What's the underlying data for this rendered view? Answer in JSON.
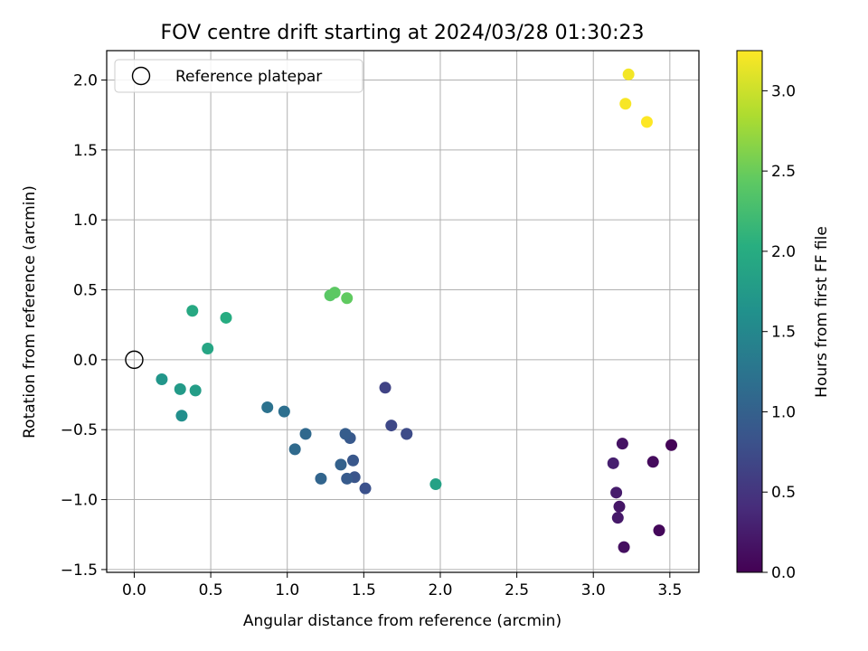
{
  "chart_data": {
    "type": "scatter",
    "title": "FOV centre drift starting at 2024/03/28 01:30:23",
    "xlabel": "Angular distance from reference (arcmin)",
    "ylabel": "Rotation from reference (arcmin)",
    "xlim": [
      -0.18,
      3.69
    ],
    "ylim": [
      -1.52,
      2.21
    ],
    "xticks": [
      0.0,
      0.5,
      1.0,
      1.5,
      2.0,
      2.5,
      3.0,
      3.5
    ],
    "xtick_labels": [
      "0.0",
      "0.5",
      "1.0",
      "1.5",
      "2.0",
      "2.5",
      "3.0",
      "3.5"
    ],
    "yticks": [
      -1.5,
      -1.0,
      -0.5,
      0.0,
      0.5,
      1.0,
      1.5,
      2.0
    ],
    "ytick_labels": [
      "−1.5",
      "−1.0",
      "−0.5",
      "0.0",
      "0.5",
      "1.0",
      "1.5",
      "2.0"
    ],
    "grid": true,
    "colormap": "viridis",
    "colorbar": {
      "label": "Hours from first FF file",
      "range": [
        0.0,
        3.25
      ],
      "ticks": [
        0.0,
        0.5,
        1.0,
        1.5,
        2.0,
        2.5,
        3.0
      ],
      "tick_labels": [
        "0.0",
        "0.5",
        "1.0",
        "1.5",
        "2.0",
        "2.5",
        "3.0"
      ]
    },
    "legend": {
      "placement": "upper-left",
      "entries": [
        {
          "label": "Reference platepar",
          "marker": "open-circle"
        }
      ]
    },
    "reference_point": {
      "x": 0.0,
      "y": 0.0
    },
    "points": [
      {
        "x": 3.51,
        "y": -0.61,
        "c": 0.03
      },
      {
        "x": 3.43,
        "y": -1.22,
        "c": 0.06
      },
      {
        "x": 3.39,
        "y": -0.73,
        "c": 0.09
      },
      {
        "x": 3.2,
        "y": -1.34,
        "c": 0.13
      },
      {
        "x": 3.19,
        "y": -0.6,
        "c": 0.16
      },
      {
        "x": 3.17,
        "y": -1.05,
        "c": 0.19
      },
      {
        "x": 3.16,
        "y": -1.13,
        "c": 0.22
      },
      {
        "x": 3.15,
        "y": -0.95,
        "c": 0.25
      },
      {
        "x": 3.13,
        "y": -0.74,
        "c": 0.28
      },
      {
        "x": 1.64,
        "y": -0.2,
        "c": 0.65
      },
      {
        "x": 1.68,
        "y": -0.47,
        "c": 0.7
      },
      {
        "x": 1.78,
        "y": -0.53,
        "c": 0.72
      },
      {
        "x": 1.78,
        "y": -0.53,
        "c": 0.74
      },
      {
        "x": 1.51,
        "y": -0.92,
        "c": 0.8
      },
      {
        "x": 1.44,
        "y": -0.84,
        "c": 0.85
      },
      {
        "x": 1.43,
        "y": -0.72,
        "c": 0.88
      },
      {
        "x": 1.41,
        "y": -0.56,
        "c": 0.9
      },
      {
        "x": 1.38,
        "y": -0.53,
        "c": 0.95
      },
      {
        "x": 1.39,
        "y": -0.85,
        "c": 0.93
      },
      {
        "x": 1.35,
        "y": -0.75,
        "c": 1.0
      },
      {
        "x": 1.22,
        "y": -0.85,
        "c": 1.05
      },
      {
        "x": 1.12,
        "y": -0.53,
        "c": 1.1
      },
      {
        "x": 1.05,
        "y": -0.64,
        "c": 1.12
      },
      {
        "x": 0.98,
        "y": -0.37,
        "c": 1.18
      },
      {
        "x": 0.87,
        "y": -0.34,
        "c": 1.22
      },
      {
        "x": 0.31,
        "y": -0.4,
        "c": 1.6
      },
      {
        "x": 0.18,
        "y": -0.14,
        "c": 1.7
      },
      {
        "x": 0.3,
        "y": -0.21,
        "c": 1.75
      },
      {
        "x": 0.4,
        "y": -0.22,
        "c": 1.8
      },
      {
        "x": 0.48,
        "y": 0.08,
        "c": 1.9
      },
      {
        "x": 0.38,
        "y": 0.35,
        "c": 1.95
      },
      {
        "x": 0.6,
        "y": 0.3,
        "c": 2.0
      },
      {
        "x": 1.97,
        "y": -0.89,
        "c": 1.85
      },
      {
        "x": 1.28,
        "y": 0.46,
        "c": 2.4
      },
      {
        "x": 1.31,
        "y": 0.48,
        "c": 2.42
      },
      {
        "x": 1.39,
        "y": 0.44,
        "c": 2.45
      },
      {
        "x": 3.23,
        "y": 2.04,
        "c": 3.2
      },
      {
        "x": 3.21,
        "y": 1.83,
        "c": 3.22
      },
      {
        "x": 3.35,
        "y": 1.7,
        "c": 3.25
      }
    ]
  }
}
